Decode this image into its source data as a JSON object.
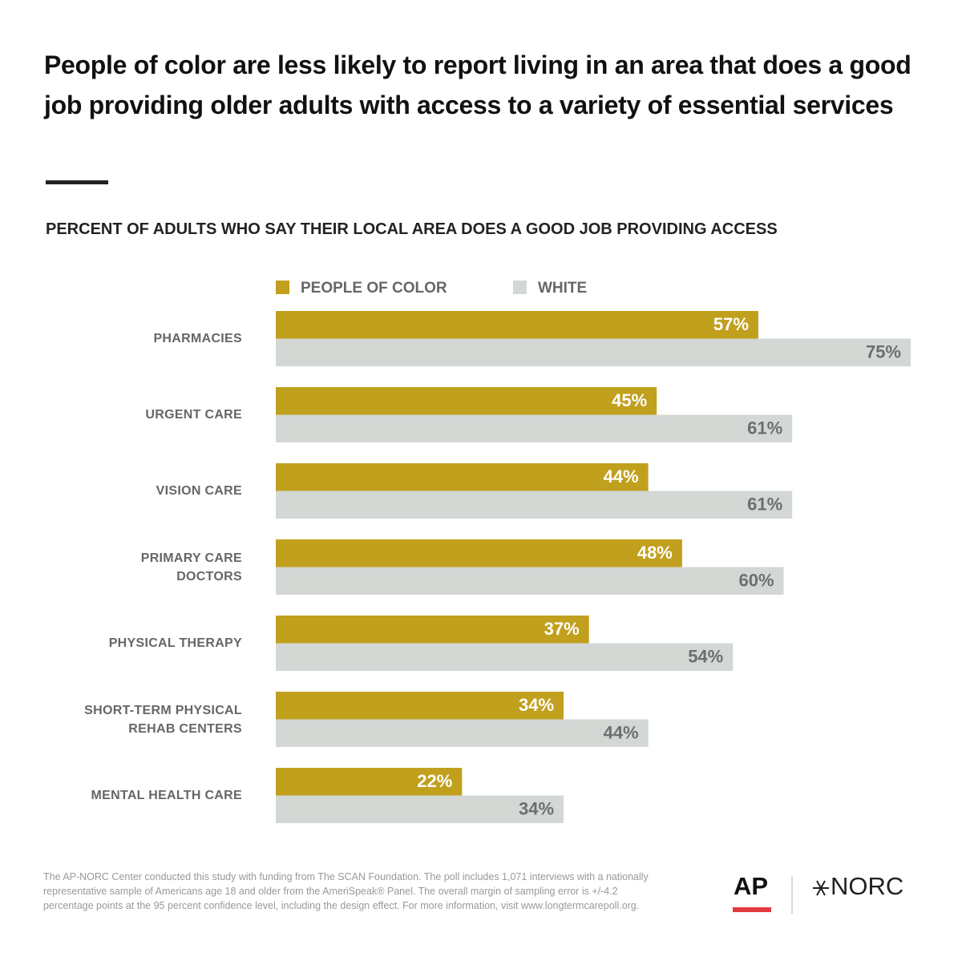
{
  "chart_data": {
    "type": "bar",
    "orientation": "horizontal",
    "title": "People of color are less likely to report living in an area that does a good job providing older adults with access to a variety of essential services",
    "subtitle": "PERCENT OF ADULTS WHO SAY THEIR LOCAL AREA DOES A GOOD JOB PROVIDING ACCESS",
    "categories": [
      "PHARMACIES",
      "URGENT CARE",
      "VISION CARE",
      "PRIMARY CARE\nDOCTORS",
      "PHYSICAL THERAPY",
      "SHORT-TERM PHYSICAL\nREHAB CENTERS",
      "MENTAL HEALTH CARE"
    ],
    "series": [
      {
        "name": "PEOPLE OF COLOR",
        "color": "#c1a01e",
        "label_color": "#ffffff",
        "values": [
          57,
          45,
          44,
          48,
          37,
          34,
          22
        ],
        "value_labels": [
          "57%",
          "45%",
          "44%",
          "48%",
          "37%",
          "34%",
          "22%"
        ]
      },
      {
        "name": "WHITE",
        "color": "#d3d8d5",
        "label_color": "#6d6e70",
        "values": [
          75,
          61,
          61,
          60,
          54,
          44,
          34
        ],
        "value_labels": [
          "75%",
          "61%",
          "61%",
          "60%",
          "54%",
          "44%",
          "34%"
        ]
      }
    ],
    "footnote": "The AP-NORC Center conducted this study with funding from The SCAN Foundation. The poll includes 1,071 interviews with a nationally representative sample of Americans age 18 and older from the AmeriSpeak® Panel. The overall margin of sampling error is +/-4.2 percentage points at the 95 percent confidence level, including the design effect. For more information, visit www.longtermcarepoll.org.",
    "logos": [
      "AP",
      "NORC"
    ]
  }
}
